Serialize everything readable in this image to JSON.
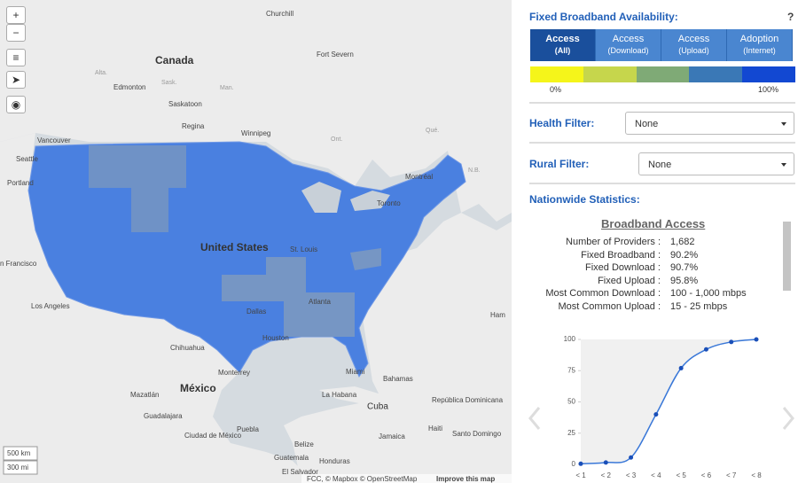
{
  "map": {
    "zoom_in": "+",
    "zoom_out": "−",
    "labels": [
      "Churchill",
      "Canada",
      "Fort Severn",
      "Alta.",
      "Edmonton",
      "Sask.",
      "Man.",
      "Saskatoon",
      "Regina",
      "Winnipeg",
      "Ont.",
      "Qué.",
      "Vancouver",
      "Seattle",
      "Portland",
      "Montréal",
      "Toronto",
      "N.B.",
      "United States",
      "St. Louis",
      "n Francisco",
      "Los Angeles",
      "Dallas",
      "Houston",
      "Atlanta",
      "Chihuahua",
      "Monterrey",
      "Miami",
      "Bahamas",
      "México",
      "Mazatlán",
      "Guadalajara",
      "Ciudad de México",
      "Puebla",
      "La Habana",
      "Cuba",
      "República Dominicana",
      "Haiti",
      "Santo Domingo",
      "Jamaica",
      "Belize",
      "Guatemala",
      "Honduras",
      "El Salvador",
      "Ham"
    ],
    "scale": [
      "500 km",
      "300 mi"
    ],
    "attribution": "FCC, © Mapbox © OpenStreetMap",
    "improve": "Improve this map"
  },
  "panel": {
    "title": "Fixed Broadband Availability:",
    "help": "?",
    "tabs": [
      {
        "title": "Access",
        "sub": "(All)"
      },
      {
        "title": "Access",
        "sub": "(Download)"
      },
      {
        "title": "Access",
        "sub": "(Upload)"
      },
      {
        "title": "Adoption",
        "sub": "(Internet)"
      }
    ],
    "legend_colors": [
      "#f5f51a",
      "#c6d64c",
      "#7faa76",
      "#3a78b6",
      "#1248d2"
    ],
    "legend_min": "0%",
    "legend_max": "100%",
    "health_label": "Health Filter:",
    "health_value": "None",
    "rural_label": "Rural Filter:",
    "rural_value": "None",
    "stats_title": "Nationwide Statistics:",
    "stats_heading": "Broadband Access",
    "stats": [
      [
        "Number of Providers :",
        "1,682"
      ],
      [
        "Fixed Broadband :",
        "90.2%"
      ],
      [
        "Fixed Download :",
        "90.7%"
      ],
      [
        "Fixed Upload :",
        "95.8%"
      ],
      [
        "Most Common Download :",
        "100 - 1,000 mbps"
      ],
      [
        "Most Common Upload :",
        "15 - 25 mbps"
      ]
    ]
  },
  "chart_data": {
    "type": "line",
    "categories": [
      "< 1",
      "< 2",
      "< 3",
      "< 4",
      "< 5",
      "< 6",
      "< 7",
      "< 8"
    ],
    "values": [
      0.5,
      1.5,
      5.5,
      40,
      77,
      92,
      98,
      100
    ],
    "color": "#3a78d8",
    "ylim": [
      0,
      100
    ],
    "yticks": [
      0,
      25,
      50,
      75,
      100
    ]
  }
}
